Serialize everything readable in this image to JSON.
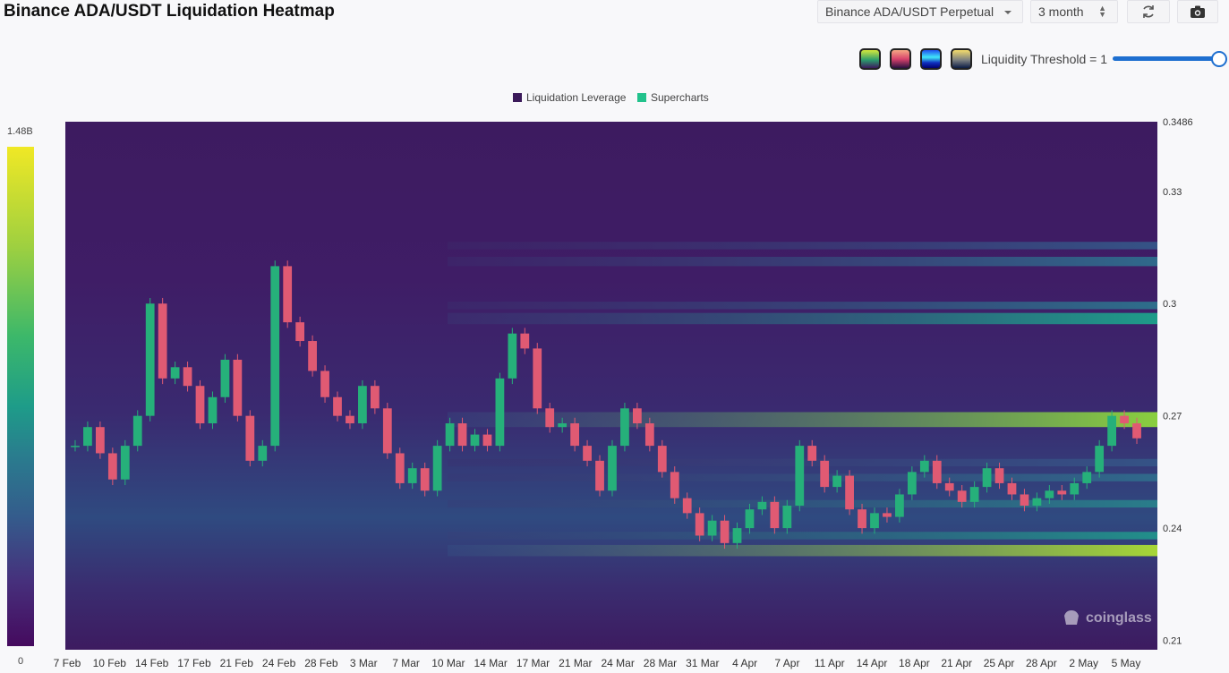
{
  "header": {
    "title": "Binance ADA/USDT Liquidation Heatmap",
    "pair_select": "Binance ADA/USDT Perpetual",
    "range_select": "3 month",
    "refresh_icon": "refresh-icon",
    "camera_icon": "camera-icon"
  },
  "toolbar": {
    "threshold_label": "Liquidity Threshold = 1",
    "threshold_value": 1,
    "palettes": [
      "viridis",
      "magma",
      "blue",
      "cividis"
    ]
  },
  "colorbar": {
    "max_label": "1.48B",
    "min_label": "0"
  },
  "watermark": "coinglass",
  "chart_data": {
    "type": "heatmap",
    "legend": [
      "Liquidation Leverage",
      "Supercharts"
    ],
    "legend_colors": [
      "#3b1a5a",
      "#22c28c"
    ],
    "legend_position": "top-center",
    "x_tick_labels": [
      "7 Feb",
      "10 Feb",
      "14 Feb",
      "17 Feb",
      "21 Feb",
      "24 Feb",
      "28 Feb",
      "3 Mar",
      "7 Mar",
      "10 Mar",
      "14 Mar",
      "17 Mar",
      "21 Mar",
      "24 Mar",
      "28 Mar",
      "31 Mar",
      "4 Apr",
      "7 Apr",
      "11 Apr",
      "14 Apr",
      "18 Apr",
      "21 Apr",
      "25 Apr",
      "28 Apr",
      "2 May",
      "5 May"
    ],
    "y_tick_labels": [
      "0.3486",
      "0.33",
      "0.3",
      "0.27",
      "0.24",
      "0.21"
    ],
    "y_ticks": [
      0.3486,
      0.33,
      0.3,
      0.27,
      0.24,
      0.21
    ],
    "ylim": [
      0.2075,
      0.3486
    ],
    "price_close": [
      0.262,
      0.267,
      0.26,
      0.253,
      0.262,
      0.27,
      0.3,
      0.28,
      0.283,
      0.278,
      0.268,
      0.275,
      0.285,
      0.27,
      0.258,
      0.262,
      0.31,
      0.295,
      0.29,
      0.282,
      0.275,
      0.27,
      0.268,
      0.278,
      0.272,
      0.26,
      0.252,
      0.256,
      0.25,
      0.262,
      0.268,
      0.262,
      0.265,
      0.262,
      0.28,
      0.292,
      0.288,
      0.272,
      0.267,
      0.268,
      0.262,
      0.258,
      0.25,
      0.262,
      0.272,
      0.268,
      0.262,
      0.255,
      0.248,
      0.244,
      0.238,
      0.242,
      0.236,
      0.24,
      0.245,
      0.247,
      0.24,
      0.246,
      0.262,
      0.258,
      0.251,
      0.254,
      0.245,
      0.24,
      0.244,
      0.243,
      0.249,
      0.255,
      0.258,
      0.252,
      0.25,
      0.247,
      0.251,
      0.256,
      0.252,
      0.249,
      0.246,
      0.248,
      0.25,
      0.249,
      0.252,
      0.255,
      0.262,
      0.27,
      0.268,
      0.264
    ],
    "heat_bands": [
      {
        "low": 0.2945,
        "high": 0.2975,
        "intensity": 0.6
      },
      {
        "low": 0.2985,
        "high": 0.3005,
        "intensity": 0.42
      },
      {
        "low": 0.31,
        "high": 0.3125,
        "intensity": 0.4
      },
      {
        "low": 0.3145,
        "high": 0.3165,
        "intensity": 0.3
      },
      {
        "low": 0.267,
        "high": 0.271,
        "intensity": 0.85
      },
      {
        "low": 0.2325,
        "high": 0.2355,
        "intensity": 0.9
      },
      {
        "low": 0.237,
        "high": 0.239,
        "intensity": 0.55
      },
      {
        "low": 0.2455,
        "high": 0.2475,
        "intensity": 0.48
      },
      {
        "low": 0.2525,
        "high": 0.2545,
        "intensity": 0.4
      },
      {
        "low": 0.2565,
        "high": 0.2585,
        "intensity": 0.3
      }
    ],
    "grid": false
  }
}
